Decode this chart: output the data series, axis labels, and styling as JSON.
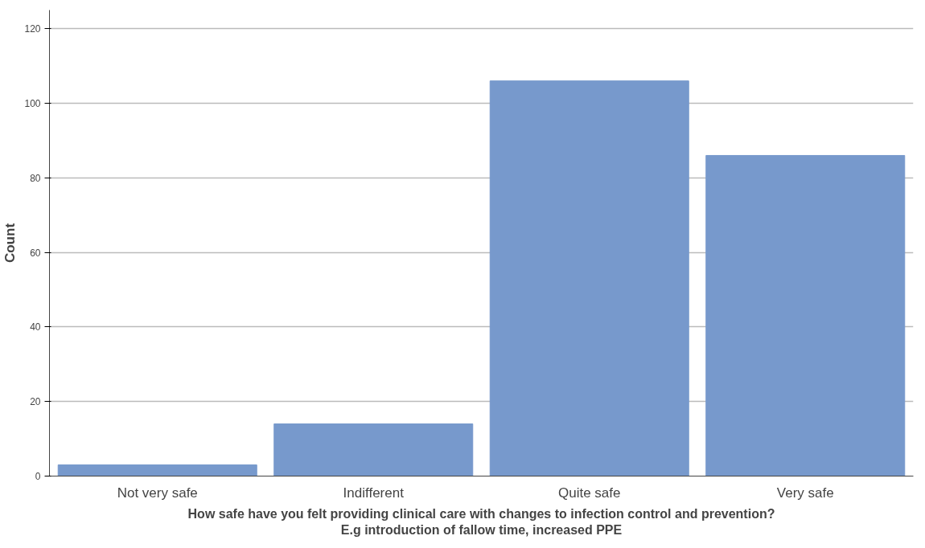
{
  "chart_data": {
    "type": "bar",
    "xlabel": "How safe have you felt providing clinical care with changes to infection control and prevention? E.g introduction of fallow time, increased PPE",
    "ylabel": "Count",
    "categories": [
      "Not very safe",
      "Indifferent",
      "Quite safe",
      "Very safe"
    ],
    "values": [
      3,
      14,
      106,
      86
    ],
    "color": "#7799cc",
    "ylim": [
      0,
      125
    ],
    "yticks": [
      0,
      20,
      40,
      60,
      80,
      100,
      120
    ],
    "grid": "y"
  }
}
